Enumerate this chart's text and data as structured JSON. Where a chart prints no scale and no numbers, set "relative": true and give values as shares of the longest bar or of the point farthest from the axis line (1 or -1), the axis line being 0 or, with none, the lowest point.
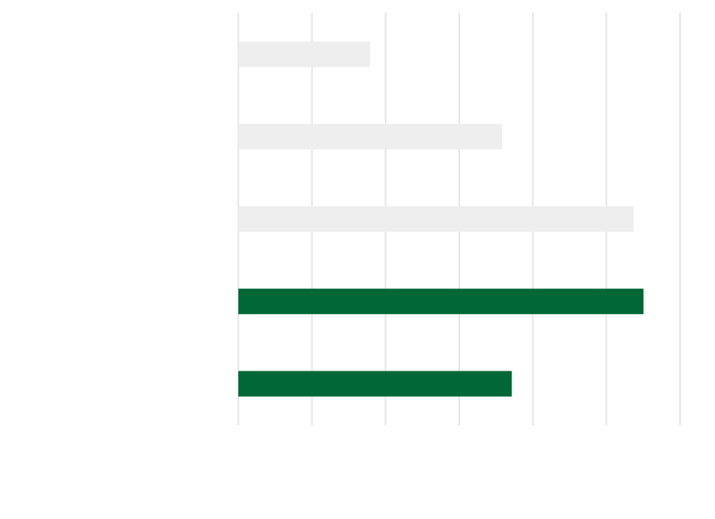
{
  "chart_data": {
    "type": "bar",
    "orientation": "horizontal",
    "relative": true,
    "grid": "x",
    "categories": [
      null,
      null,
      null,
      null,
      null
    ],
    "values": [
      0.325,
      0.651,
      0.976,
      1,
      0.675
    ],
    "colors": [
      "#eeeeee",
      "#eeeeee",
      "#eeeeee",
      "#006837",
      "#006837"
    ]
  }
}
